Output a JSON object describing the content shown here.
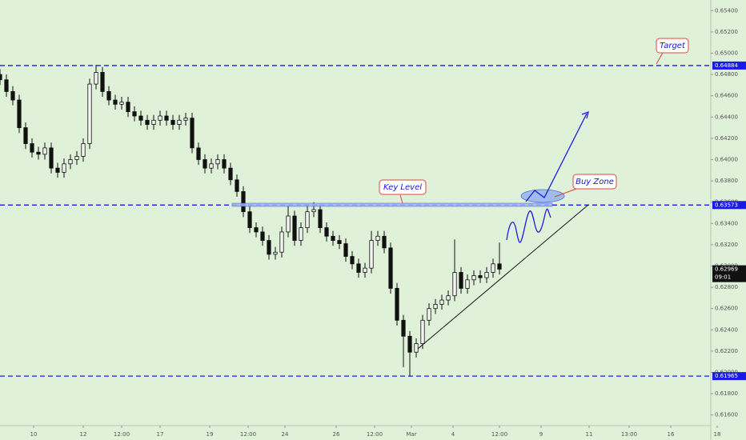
{
  "chart_data": {
    "type": "candlestick",
    "x": [
      0,
      2,
      4,
      6,
      8,
      10,
      12,
      14,
      16,
      18,
      20,
      22,
      24,
      26,
      28,
      30,
      32,
      34,
      36,
      38,
      40,
      42,
      44,
      46,
      48,
      50,
      52,
      54,
      56,
      58,
      60,
      62,
      64,
      66,
      68,
      70,
      72,
      74,
      76,
      78,
      80,
      82,
      84,
      86,
      88,
      90,
      92,
      94,
      96,
      98,
      100,
      102,
      104,
      106,
      108,
      110,
      112,
      114,
      116,
      118,
      120,
      122,
      124,
      126,
      128,
      130,
      132,
      134,
      136,
      138,
      140,
      142,
      144,
      146,
      148,
      150,
      152,
      154,
      156
    ],
    "open": [
      0.648,
      0.6475,
      0.6464,
      0.6456,
      0.643,
      0.6415,
      0.6407,
      0.6405,
      0.6411,
      0.6392,
      0.6388,
      0.6396,
      0.64,
      0.6403,
      0.6415,
      0.6471,
      0.6482,
      0.6464,
      0.6456,
      0.6452,
      0.6454,
      0.6445,
      0.6441,
      0.6437,
      0.6433,
      0.6437,
      0.6441,
      0.6437,
      0.6433,
      0.6437,
      0.6439,
      0.6411,
      0.64,
      0.6392,
      0.6396,
      0.64,
      0.6392,
      0.6381,
      0.637,
      0.6351,
      0.6336,
      0.6332,
      0.6324,
      0.6311,
      0.6313,
      0.6332,
      0.6347,
      0.6324,
      0.6336,
      0.6351,
      0.6353,
      0.6336,
      0.6328,
      0.6324,
      0.6321,
      0.6309,
      0.6302,
      0.6294,
      0.6298,
      0.6324,
      0.6328,
      0.6317,
      0.6279,
      0.6249,
      0.6234,
      0.6219,
      0.6227,
      0.6249,
      0.626,
      0.6264,
      0.6268,
      0.6272,
      0.6294,
      0.6279,
      0.6287,
      0.6291,
      0.6289,
      0.6294,
      0.6302
    ],
    "high": [
      0.6485,
      0.648,
      0.6469,
      0.6461,
      0.6435,
      0.642,
      0.6412,
      0.6416,
      0.6416,
      0.6397,
      0.6401,
      0.6405,
      0.6408,
      0.642,
      0.6476,
      0.6489,
      0.6487,
      0.6469,
      0.6461,
      0.6459,
      0.6459,
      0.645,
      0.6446,
      0.6442,
      0.6442,
      0.6446,
      0.6446,
      0.6442,
      0.6442,
      0.6444,
      0.6444,
      0.6416,
      0.6405,
      0.6401,
      0.6405,
      0.6405,
      0.6397,
      0.6386,
      0.6375,
      0.6356,
      0.6341,
      0.6337,
      0.6329,
      0.6318,
      0.6337,
      0.6357,
      0.6352,
      0.6341,
      0.6358,
      0.636,
      0.6358,
      0.6341,
      0.6333,
      0.6329,
      0.6326,
      0.6314,
      0.6307,
      0.6303,
      0.6333,
      0.6333,
      0.6333,
      0.6322,
      0.6284,
      0.6254,
      0.6239,
      0.6232,
      0.6254,
      0.6265,
      0.6269,
      0.6273,
      0.6277,
      0.6325,
      0.6299,
      0.6292,
      0.6296,
      0.6296,
      0.6299,
      0.6307,
      0.6322
    ],
    "low": [
      0.647,
      0.6459,
      0.6451,
      0.6425,
      0.641,
      0.6402,
      0.64,
      0.64,
      0.6387,
      0.6383,
      0.6383,
      0.6391,
      0.6395,
      0.6398,
      0.641,
      0.6466,
      0.6459,
      0.6451,
      0.6447,
      0.6447,
      0.644,
      0.6436,
      0.6432,
      0.6428,
      0.6428,
      0.6432,
      0.6432,
      0.6428,
      0.6428,
      0.6432,
      0.6406,
      0.6395,
      0.6387,
      0.6387,
      0.6391,
      0.6387,
      0.6376,
      0.6365,
      0.6346,
      0.6331,
      0.6327,
      0.6319,
      0.6306,
      0.6306,
      0.6308,
      0.6327,
      0.6319,
      0.6319,
      0.6331,
      0.6346,
      0.6331,
      0.6323,
      0.6319,
      0.6316,
      0.6304,
      0.6297,
      0.6289,
      0.6289,
      0.6293,
      0.6319,
      0.6312,
      0.6274,
      0.6244,
      0.6205,
      0.6196,
      0.6214,
      0.6222,
      0.6244,
      0.6255,
      0.6259,
      0.6263,
      0.6267,
      0.6274,
      0.6274,
      0.6282,
      0.6284,
      0.6284,
      0.6289,
      0.6292
    ],
    "close": [
      0.6475,
      0.6464,
      0.6456,
      0.643,
      0.6415,
      0.6407,
      0.6405,
      0.6411,
      0.6392,
      0.6388,
      0.6396,
      0.64,
      0.6403,
      0.6415,
      0.6471,
      0.6482,
      0.6464,
      0.6456,
      0.6452,
      0.6454,
      0.6445,
      0.6441,
      0.6437,
      0.6433,
      0.6437,
      0.6441,
      0.6437,
      0.6433,
      0.6437,
      0.6439,
      0.6411,
      0.64,
      0.6392,
      0.6396,
      0.64,
      0.6392,
      0.6381,
      0.637,
      0.6351,
      0.6336,
      0.6332,
      0.6324,
      0.6311,
      0.6313,
      0.6332,
      0.6347,
      0.6324,
      0.6336,
      0.6351,
      0.6353,
      0.6336,
      0.6328,
      0.6324,
      0.6321,
      0.6309,
      0.6302,
      0.6294,
      0.6298,
      0.6324,
      0.6328,
      0.6317,
      0.6279,
      0.6249,
      0.6234,
      0.6219,
      0.6227,
      0.6249,
      0.626,
      0.6264,
      0.6268,
      0.6272,
      0.6294,
      0.6279,
      0.6287,
      0.6291,
      0.6289,
      0.6294,
      0.6302,
      0.6297
    ],
    "up_color": "#f4f4f4",
    "down_color": "#111111",
    "xlim": [
      0,
      224
    ],
    "ylim": [
      0.615,
      0.655
    ],
    "xticks": [
      {
        "value": 10.5,
        "label": "10"
      },
      {
        "value": 26,
        "label": "12"
      },
      {
        "value": 38,
        "label": "12:00"
      },
      {
        "value": 50,
        "label": "17"
      },
      {
        "value": 65.5,
        "label": "19"
      },
      {
        "value": 77.5,
        "label": "12:00"
      },
      {
        "value": 89,
        "label": "24"
      },
      {
        "value": 105,
        "label": "26"
      },
      {
        "value": 117,
        "label": "12:00"
      },
      {
        "value": 128.5,
        "label": "Mar"
      },
      {
        "value": 141.5,
        "label": "4"
      },
      {
        "value": 156,
        "label": "12:00"
      },
      {
        "value": 169,
        "label": "9"
      },
      {
        "value": 184,
        "label": "11"
      },
      {
        "value": 196.5,
        "label": "13:00"
      },
      {
        "value": 209.5,
        "label": "16"
      },
      {
        "value": 224,
        "label": "18"
      }
    ],
    "yticks": [
      {
        "value": 0.616,
        "label": "0.61600"
      },
      {
        "value": 0.618,
        "label": "0.61800"
      },
      {
        "value": 0.62,
        "label": "0.62000"
      },
      {
        "value": 0.622,
        "label": "0.62200"
      },
      {
        "value": 0.624,
        "label": "0.62400"
      },
      {
        "value": 0.626,
        "label": "0.62600"
      },
      {
        "value": 0.628,
        "label": "0.62800"
      },
      {
        "value": 0.63,
        "label": "0.63000"
      },
      {
        "value": 0.632,
        "label": "0.63200"
      },
      {
        "value": 0.634,
        "label": "0.63400"
      },
      {
        "value": 0.636,
        "label": "0.63600"
      },
      {
        "value": 0.638,
        "label": "0.63800"
      },
      {
        "value": 0.64,
        "label": "0.64000"
      },
      {
        "value": 0.642,
        "label": "0.64200"
      },
      {
        "value": 0.644,
        "label": "0.64400"
      },
      {
        "value": 0.646,
        "label": "0.64600"
      },
      {
        "value": 0.648,
        "label": "0.64800"
      },
      {
        "value": 0.65,
        "label": "0.65000"
      },
      {
        "value": 0.652,
        "label": "0.65200"
      },
      {
        "value": 0.654,
        "label": "0.65400"
      }
    ],
    "levels": [
      0.64884,
      0.63573,
      0.61965
    ],
    "level_color": "#1a1ae6",
    "last_price": {
      "value": 0.62969,
      "countdown": "09:01"
    },
    "annotations": [
      "Target",
      "Key Level",
      "Buy Zone"
    ]
  }
}
